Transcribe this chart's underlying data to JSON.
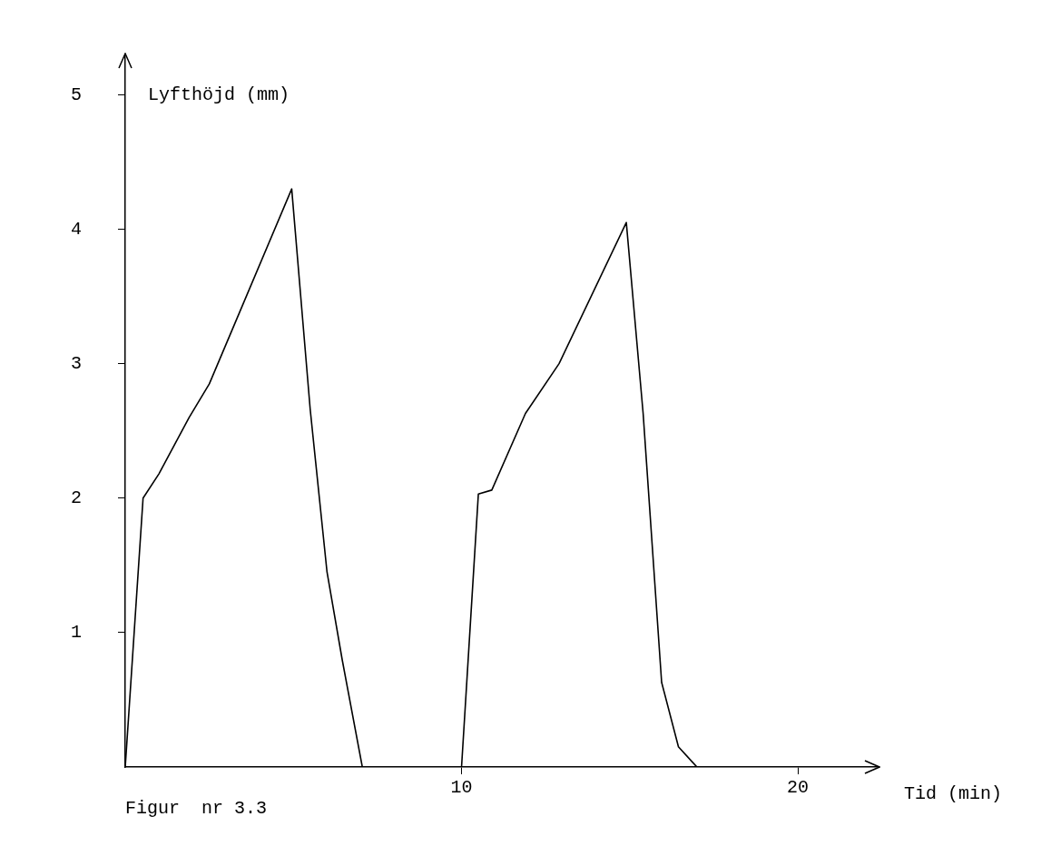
{
  "chart_data": {
    "type": "line",
    "xlabel": "Tid (min)",
    "ylabel": "Lyfthöjd (mm)",
    "annotations": [
      "Figur  nr 3.3"
    ],
    "x": [
      0,
      0.53,
      1.0,
      1.9,
      2.5,
      4.95,
      5.5,
      6.0,
      6.45,
      7.05,
      10,
      10.5,
      10.9,
      11.9,
      12.9,
      14.9,
      15.4,
      15.95,
      16.45,
      17.0
    ],
    "series": [
      {
        "color": "#000000",
        "values": [
          0,
          2.0,
          2.18,
          2.6,
          2.85,
          4.3,
          2.66,
          1.45,
          0.8,
          0,
          0,
          2.03,
          2.06,
          2.63,
          3.0,
          4.05,
          2.63,
          0.63,
          0.15,
          0
        ]
      }
    ],
    "xlim": [
      0,
      22.4
    ],
    "ylim": [
      0,
      5.3
    ],
    "xticks": [
      10,
      20
    ],
    "yticks": [
      1,
      2,
      3,
      4,
      5
    ],
    "grid": false,
    "legend": false,
    "marker": "none",
    "line_style": "solid"
  }
}
